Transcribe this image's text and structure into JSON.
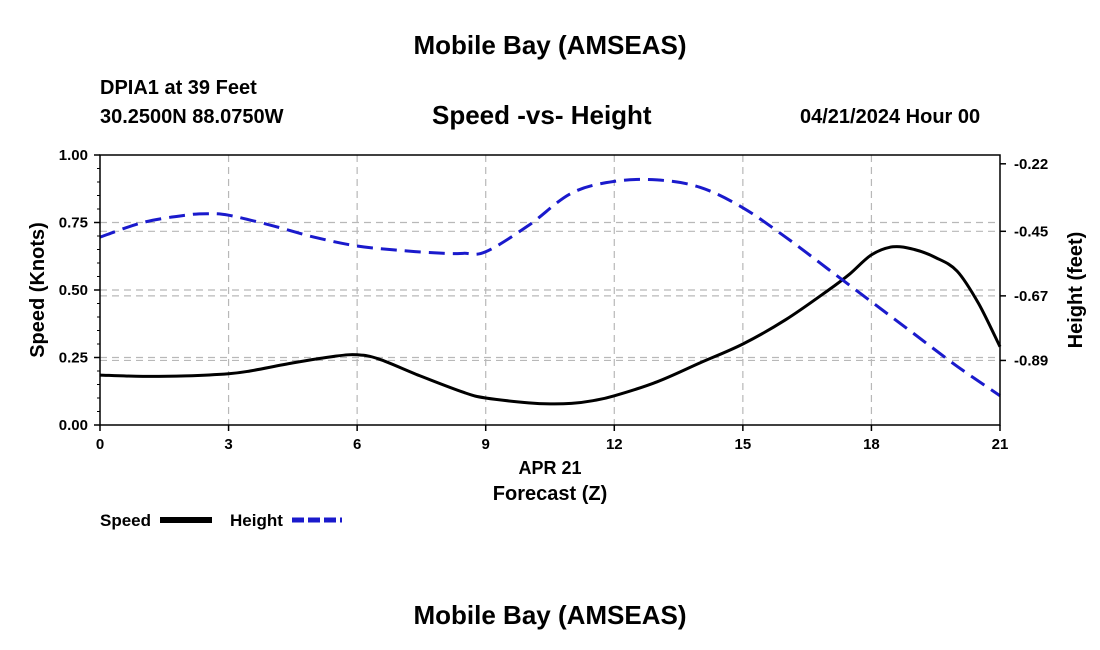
{
  "header": {
    "title": "Mobile Bay (AMSEAS)",
    "station": "DPIA1 at 39 Feet",
    "coords": "30.2500N  88.0750W",
    "plot_title": "Speed -vs- Height",
    "datetime": "04/21/2024 Hour 00"
  },
  "footer": {
    "title": "Mobile Bay (AMSEAS)"
  },
  "colors": {
    "speed": "#000000",
    "height": "#1a1acc",
    "grid": "#b8b8b8"
  },
  "chart_data": {
    "type": "line",
    "title": "Speed -vs- Height",
    "xlabel": "Forecast (Z)",
    "xsublabel": "APR 21",
    "ylabel": "Speed (Knots)",
    "y2label": "Height (feet)",
    "xlim": [
      0,
      21
    ],
    "ylim": [
      0,
      1
    ],
    "y2lim": [
      -1.11,
      -0.19
    ],
    "xticks": [
      0,
      3,
      6,
      9,
      12,
      15,
      18,
      21
    ],
    "xtick_labels": [
      "0",
      "3",
      "6",
      "9",
      "12",
      "15",
      "18",
      "21"
    ],
    "yticks": [
      0,
      0.25,
      0.5,
      0.75,
      1.0
    ],
    "ytick_labels": [
      "0.00",
      "0.25",
      "0.50",
      "0.75",
      "1.00"
    ],
    "y2ticks": [
      -0.22,
      -0.45,
      -0.67,
      -0.89
    ],
    "y2tick_labels": [
      "-0.22",
      "-0.45",
      "-0.67",
      "-0.89"
    ],
    "grid": true,
    "series": [
      {
        "name": "Speed",
        "axis": "left",
        "style": "solid",
        "x": [
          0,
          1,
          2,
          3,
          3.5,
          4.5,
          5.5,
          6,
          6.5,
          7.5,
          8.5,
          9,
          10,
          10.5,
          11,
          11.5,
          12,
          13,
          14,
          15,
          16,
          17,
          17.5,
          18,
          18.5,
          19,
          19.5,
          20,
          20.5,
          21
        ],
        "values": [
          0.185,
          0.18,
          0.182,
          0.19,
          0.2,
          0.23,
          0.255,
          0.26,
          0.245,
          0.18,
          0.12,
          0.1,
          0.082,
          0.078,
          0.08,
          0.09,
          0.108,
          0.16,
          0.23,
          0.3,
          0.39,
          0.5,
          0.56,
          0.63,
          0.66,
          0.65,
          0.62,
          0.57,
          0.45,
          0.29
        ]
      },
      {
        "name": "Height",
        "axis": "right",
        "style": "dashed",
        "x": [
          0,
          1,
          2,
          2.5,
          3,
          4,
          5,
          6,
          7,
          8,
          8.5,
          9,
          10,
          11,
          12,
          13,
          14,
          15,
          16,
          17,
          18,
          19,
          20,
          21
        ],
        "values": [
          -0.47,
          -0.42,
          -0.395,
          -0.39,
          -0.395,
          -0.43,
          -0.47,
          -0.5,
          -0.515,
          -0.525,
          -0.525,
          -0.52,
          -0.43,
          -0.32,
          -0.28,
          -0.275,
          -0.3,
          -0.37,
          -0.47,
          -0.58,
          -0.69,
          -0.8,
          -0.91,
          -1.01
        ]
      }
    ],
    "legend": {
      "position": "bottom-left",
      "entries": [
        {
          "label": "Speed",
          "style": "solid"
        },
        {
          "label": "Height",
          "style": "dashed"
        }
      ]
    }
  }
}
